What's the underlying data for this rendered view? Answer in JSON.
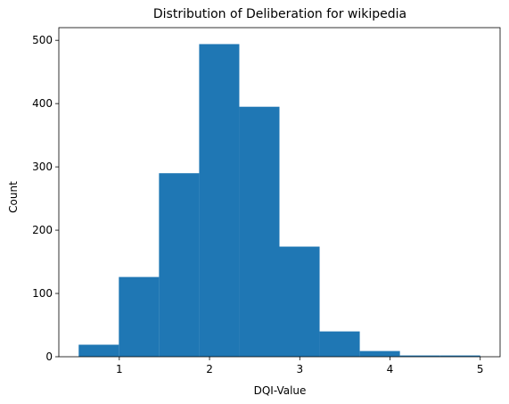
{
  "chart_data": {
    "type": "bar",
    "title": "Distribution of Deliberation for wikipedia",
    "xlabel": "DQI-Value",
    "ylabel": "Count",
    "bin_edges": [
      0.55,
      0.995,
      1.44,
      1.885,
      2.33,
      2.775,
      3.22,
      3.665,
      4.11,
      4.555,
      5.0
    ],
    "counts": [
      19,
      126,
      290,
      494,
      395,
      174,
      40,
      9,
      2,
      2
    ],
    "xlim": [
      0.33,
      5.22
    ],
    "ylim": [
      0,
      520
    ],
    "xticks": [
      1,
      2,
      3,
      4,
      5
    ],
    "yticks": [
      0,
      100,
      200,
      300,
      400,
      500
    ],
    "bar_color": "#1f77b4",
    "grid": false
  }
}
